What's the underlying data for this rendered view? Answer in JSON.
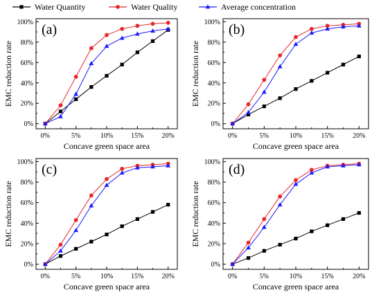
{
  "legend": {
    "items": [
      {
        "name": "Water Quantity",
        "color": "#000000",
        "marker": "square"
      },
      {
        "name": "Water Quality",
        "color": "#e8262a",
        "marker": "circle"
      },
      {
        "name": "Average concentration",
        "color": "#1a1aff",
        "marker": "triangle"
      }
    ],
    "placement": "top-center"
  },
  "chart_data": [
    {
      "type": "line",
      "panel_label": "(a)",
      "xlabel": "Concave green space area",
      "ylabel": "EMC reduction rate",
      "x": [
        0,
        2.5,
        5,
        7.5,
        10,
        12.5,
        15,
        17.5,
        20
      ],
      "x_ticks": [
        "0%",
        "5%",
        "10%",
        "15%",
        "20%"
      ],
      "y_ticks": [
        "0%",
        "20%",
        "40%",
        "60%",
        "80%",
        "100%"
      ],
      "xlim": [
        -1.5,
        21.5
      ],
      "ylim": [
        -5,
        103
      ],
      "grid": false,
      "series": [
        {
          "name": "Water Quantity",
          "values": [
            0,
            12,
            24,
            36,
            47,
            58,
            70,
            81,
            92
          ]
        },
        {
          "name": "Water Quality",
          "values": [
            0,
            18,
            46,
            74,
            87,
            93,
            96,
            98,
            99
          ]
        },
        {
          "name": "Average concentration",
          "values": [
            0,
            7,
            29,
            59,
            76,
            84,
            88,
            91,
            93
          ]
        }
      ]
    },
    {
      "type": "line",
      "panel_label": "(b)",
      "xlabel": "Concave green space area",
      "ylabel": "EMC reduction rate",
      "x": [
        0,
        2.5,
        5,
        7.5,
        10,
        12.5,
        15,
        17.5,
        20
      ],
      "x_ticks": [
        "0%",
        "5%",
        "10%",
        "15%",
        "20%"
      ],
      "y_ticks": [
        "0%",
        "20%",
        "40%",
        "60%",
        "80%",
        "100%"
      ],
      "xlim": [
        -1.5,
        21.5
      ],
      "ylim": [
        -5,
        103
      ],
      "grid": false,
      "series": [
        {
          "name": "Water Quantity",
          "values": [
            0,
            9,
            17,
            25,
            34,
            42,
            50,
            58,
            66
          ]
        },
        {
          "name": "Water Quality",
          "values": [
            0,
            19,
            43,
            67,
            85,
            93,
            96,
            97,
            98
          ]
        },
        {
          "name": "Average concentration",
          "values": [
            0,
            11,
            31,
            56,
            78,
            89,
            93,
            95,
            96
          ]
        }
      ]
    },
    {
      "type": "line",
      "panel_label": "(c)",
      "xlabel": "Concave green space area",
      "ylabel": "EMC reduction rate",
      "x": [
        0,
        2.5,
        5,
        7.5,
        10,
        12.5,
        15,
        17.5,
        20
      ],
      "x_ticks": [
        "0%",
        "5%",
        "10%",
        "15%",
        "20%"
      ],
      "y_ticks": [
        "0%",
        "20%",
        "40%",
        "60%",
        "80%",
        "100%"
      ],
      "xlim": [
        -1.5,
        21.5
      ],
      "ylim": [
        -5,
        103
      ],
      "grid": false,
      "series": [
        {
          "name": "Water Quantity",
          "values": [
            0,
            8,
            15,
            22,
            29,
            37,
            44,
            51,
            58
          ]
        },
        {
          "name": "Water Quality",
          "values": [
            0,
            19,
            43,
            67,
            83,
            93,
            96,
            97,
            98
          ]
        },
        {
          "name": "Average concentration",
          "values": [
            0,
            13,
            33,
            57,
            77,
            89,
            94,
            95,
            96
          ]
        }
      ]
    },
    {
      "type": "line",
      "panel_label": "(d)",
      "xlabel": "Concave green space area",
      "ylabel": "EMC reduction rate",
      "x": [
        0,
        2.5,
        5,
        7.5,
        10,
        12.5,
        15,
        17.5,
        20
      ],
      "x_ticks": [
        "0%",
        "5%",
        "10%",
        "15%",
        "20%"
      ],
      "y_ticks": [
        "0%",
        "20%",
        "40%",
        "60%",
        "80%",
        "100%"
      ],
      "xlim": [
        -1.5,
        21.5
      ],
      "ylim": [
        -5,
        103
      ],
      "grid": false,
      "series": [
        {
          "name": "Water Quantity",
          "values": [
            0,
            6,
            13,
            19,
            25,
            32,
            38,
            44,
            50
          ]
        },
        {
          "name": "Water Quality",
          "values": [
            0,
            21,
            44,
            66,
            82,
            92,
            96,
            97,
            98
          ]
        },
        {
          "name": "Average concentration",
          "values": [
            0,
            16,
            36,
            58,
            78,
            89,
            95,
            96,
            97
          ]
        }
      ]
    }
  ]
}
